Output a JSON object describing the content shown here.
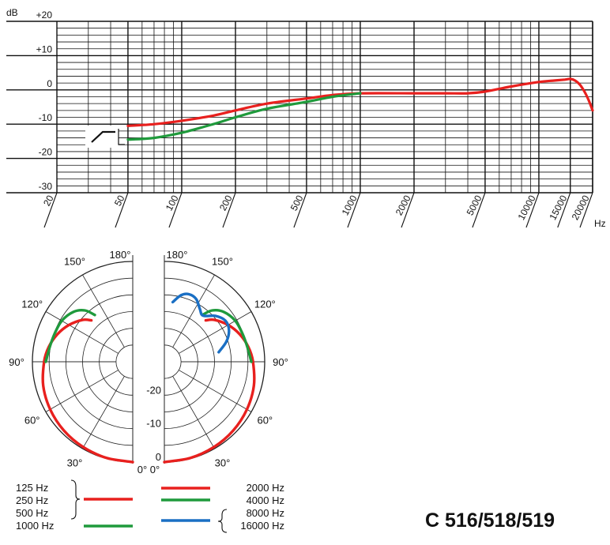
{
  "chart_data": [
    {
      "type": "line",
      "x_scale": "log",
      "x_tick_labels": [
        "20",
        "50",
        "100",
        "200",
        "500",
        "1000",
        "2000",
        "5000",
        "10000",
        "15000",
        "20000"
      ],
      "x_unit": "Hz",
      "y_unit": "dB",
      "y_tick_labels": [
        "+20",
        "+10",
        "0",
        "-10",
        "-20",
        "-30"
      ],
      "ylim": [
        -30,
        20
      ],
      "xlim": [
        20,
        20000
      ],
      "grid": true,
      "series": [
        {
          "color": "#e8201e",
          "x": [
            50,
            70,
            100,
            150,
            200,
            300,
            500,
            700,
            1000,
            2000,
            3000,
            4000,
            5000,
            7000,
            10000,
            12000,
            14000,
            15000,
            16000,
            17000,
            18000,
            19000,
            20000
          ],
          "y": [
            -10.5,
            -10,
            -9,
            -7.5,
            -6,
            -4,
            -2.5,
            -1.5,
            -1,
            -1,
            -1,
            -1,
            -0.5,
            1,
            2.3,
            2.7,
            3,
            3.2,
            2.7,
            1.5,
            -0.5,
            -3,
            -6
          ]
        },
        {
          "color": "#1f9a3c",
          "x": [
            50,
            70,
            100,
            150,
            200,
            300,
            500,
            700,
            1000
          ],
          "y": [
            -14.5,
            -14,
            -12.5,
            -10,
            -8,
            -5.5,
            -3.5,
            -2,
            -1
          ]
        }
      ]
    },
    {
      "type": "polar",
      "angle_labels": [
        "180°",
        "150°",
        "120°",
        "90°",
        "60°",
        "30°",
        "0°"
      ],
      "level_labels": [
        "-20",
        "-10",
        "0"
      ],
      "series": [
        {
          "side": "left",
          "color": "#e8201e",
          "points": [
            [
              0,
              0
            ],
            [
              15,
              -0.2
            ],
            [
              30,
              -0.5
            ],
            [
              45,
              -0.9
            ],
            [
              60,
              -1.5
            ],
            [
              75,
              -2.3
            ],
            [
              90,
              -3.5
            ],
            [
              100,
              -4.5
            ],
            [
              110,
              -6
            ],
            [
              120,
              -8
            ],
            [
              130,
              -10.5
            ],
            [
              135,
              -12.5
            ]
          ]
        },
        {
          "side": "left",
          "color": "#1f9a3c",
          "points": [
            [
              90,
              -4
            ],
            [
              100,
              -4.8
            ],
            [
              110,
              -5.2
            ],
            [
              120,
              -5.5
            ],
            [
              130,
              -6.8
            ],
            [
              137,
              -9
            ],
            [
              141,
              -12
            ]
          ]
        },
        {
          "side": "right",
          "color": "#e8201e",
          "points": [
            [
              0,
              0
            ],
            [
              15,
              -0.2
            ],
            [
              30,
              -0.5
            ],
            [
              45,
              -0.9
            ],
            [
              60,
              -1.5
            ],
            [
              75,
              -2.3
            ],
            [
              90,
              -3.5
            ],
            [
              100,
              -4.5
            ],
            [
              110,
              -6
            ],
            [
              120,
              -8
            ],
            [
              130,
              -10.5
            ],
            [
              135,
              -12.5
            ]
          ]
        },
        {
          "side": "right",
          "color": "#1f9a3c",
          "points": [
            [
              90,
              -4
            ],
            [
              100,
              -4.8
            ],
            [
              110,
              -5.2
            ],
            [
              120,
              -5.5
            ],
            [
              130,
              -6.8
            ],
            [
              137,
              -9
            ],
            [
              141,
              -12
            ]
          ]
        },
        {
          "side": "right",
          "color": "#1a6fc4",
          "points": [
            [
              100,
              -13.5
            ],
            [
              108,
              -10.5
            ],
            [
              116,
              -8.5
            ],
            [
              124,
              -8
            ],
            [
              132,
              -9.5
            ],
            [
              140,
              -12
            ],
            [
              146,
              -11
            ],
            [
              153,
              -9
            ],
            [
              160,
              -8.5
            ],
            [
              166,
              -9.5
            ],
            [
              172,
              -12
            ]
          ]
        }
      ]
    }
  ],
  "legend": [
    {
      "labels": [
        "125 Hz",
        "250 Hz",
        "500 Hz"
      ],
      "color": "#e8201e"
    },
    {
      "labels": [
        "1000 Hz"
      ],
      "color": "#1f9a3c"
    },
    {
      "labels": [
        "2000 Hz"
      ],
      "color": "#e8201e"
    },
    {
      "labels": [
        "4000 Hz"
      ],
      "color": "#1f9a3c"
    },
    {
      "labels": [
        "8000 Hz",
        "16000 Hz"
      ],
      "color": "#1a6fc4"
    }
  ],
  "model": "C 516/518/519"
}
